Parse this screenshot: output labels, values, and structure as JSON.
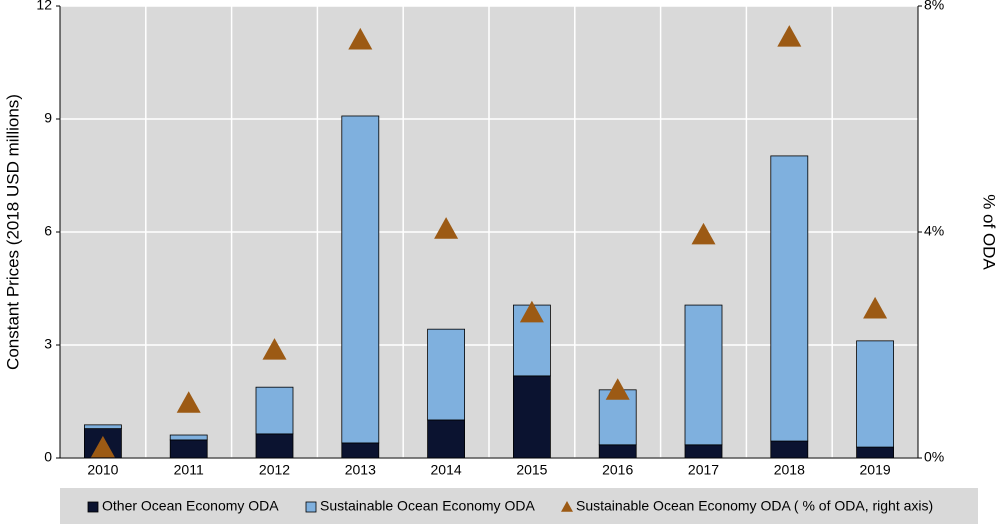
{
  "chart_data": {
    "type": "bar",
    "stacked": true,
    "y_label": "Constant Prices (2018 USD millions)",
    "y2_label": "% of ODA",
    "categories": [
      "2010",
      "2011",
      "2012",
      "2013",
      "2014",
      "2015",
      "2016",
      "2017",
      "2018",
      "2019"
    ],
    "series": [
      {
        "name": "Other Ocean Economy ODA",
        "type": "bar",
        "color": "#0b1330",
        "values": [
          0.78,
          0.48,
          0.64,
          0.4,
          1.01,
          2.18,
          0.35,
          0.35,
          0.45,
          0.29
        ]
      },
      {
        "name": "Sustainable Ocean Economy ODA",
        "type": "bar",
        "color": "#7fb0de",
        "values": [
          0.1,
          0.13,
          1.24,
          8.68,
          2.41,
          1.88,
          1.46,
          3.71,
          7.57,
          2.82
        ]
      },
      {
        "name": "Sustainable Ocean Economy ODA ( % of ODA, right axis)",
        "type": "scatter",
        "marker": "triangle",
        "axis": "y2",
        "color": "#9c5a14",
        "values": [
          0.18,
          0.97,
          1.91,
          7.4,
          4.05,
          2.57,
          1.2,
          3.95,
          7.45,
          2.64
        ]
      }
    ],
    "ylim": [
      0,
      12
    ],
    "yticks": [
      0,
      3,
      6,
      9,
      12
    ],
    "y2lim": [
      0,
      8
    ],
    "y2ticks": [
      {
        "value": 0,
        "label": "0%"
      },
      {
        "value": 4,
        "label": "4%"
      },
      {
        "value": 8,
        "label": "8%"
      }
    ],
    "grid": true,
    "legend": "bottom"
  }
}
